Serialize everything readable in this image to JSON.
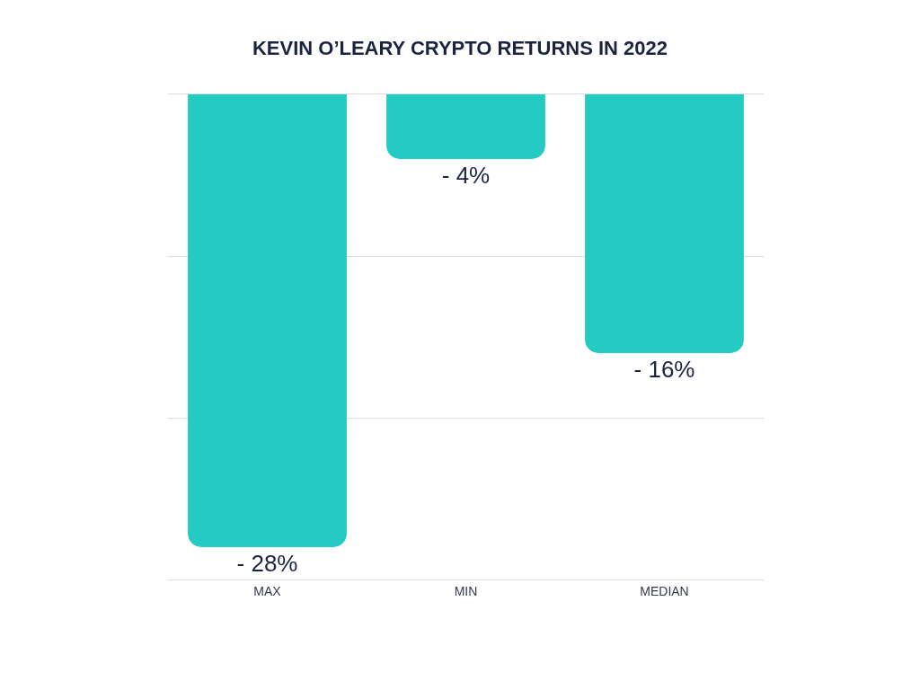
{
  "chart_data": {
    "type": "bar",
    "title": "KEVIN O’LEARY CRYPTO RETURNS IN 2022",
    "categories": [
      "MAX",
      "MIN",
      "MEDIAN"
    ],
    "values": [
      -28,
      -4,
      -16
    ],
    "value_labels": [
      "- 28%",
      "- 4%",
      "- 16%"
    ],
    "color": "#23cbc2",
    "ylim": [
      -30,
      0
    ],
    "yticks": [
      {
        "value": -30,
        "label": null
      },
      {
        "value": -20,
        "label": null
      },
      {
        "value": -10,
        "label": null
      },
      {
        "value": 0,
        "label": null
      }
    ],
    "tick_labels": "x",
    "grid": "y",
    "legend": false
  }
}
